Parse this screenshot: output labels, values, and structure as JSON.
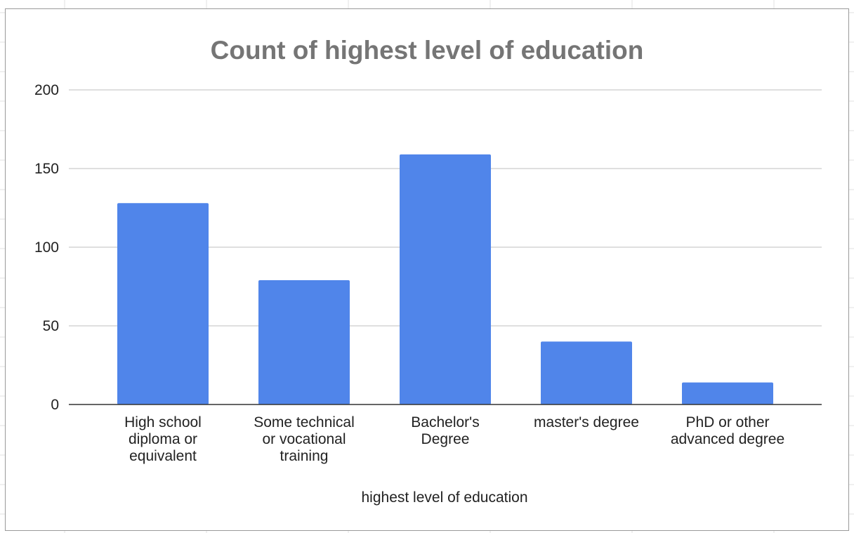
{
  "colors": {
    "bar": "#5085ea",
    "title": "#757575",
    "gridline": "#cccccc",
    "baseline": "#333333",
    "sheet_gridline": "#e2e2e2"
  },
  "chart_data": {
    "type": "bar",
    "title": "Count of highest level of education",
    "xlabel": "highest level of education",
    "ylabel": "",
    "categories": [
      "High school diploma or equivalent",
      "Some technical or vocational training",
      "Bachelor's Degree",
      "master's degree",
      "PhD or other advanced degree"
    ],
    "category_label_lines": [
      [
        "High school",
        "diploma or",
        "equivalent"
      ],
      [
        "Some technical",
        "or vocational",
        "training"
      ],
      [
        "Bachelor's",
        "Degree"
      ],
      [
        "master's degree"
      ],
      [
        "PhD or other",
        "advanced degree"
      ]
    ],
    "values": [
      128,
      79,
      159,
      40,
      14
    ],
    "ylim": [
      0,
      200
    ],
    "yticks": [
      0,
      50,
      100,
      150,
      200
    ],
    "grid": true,
    "legend": "none"
  }
}
